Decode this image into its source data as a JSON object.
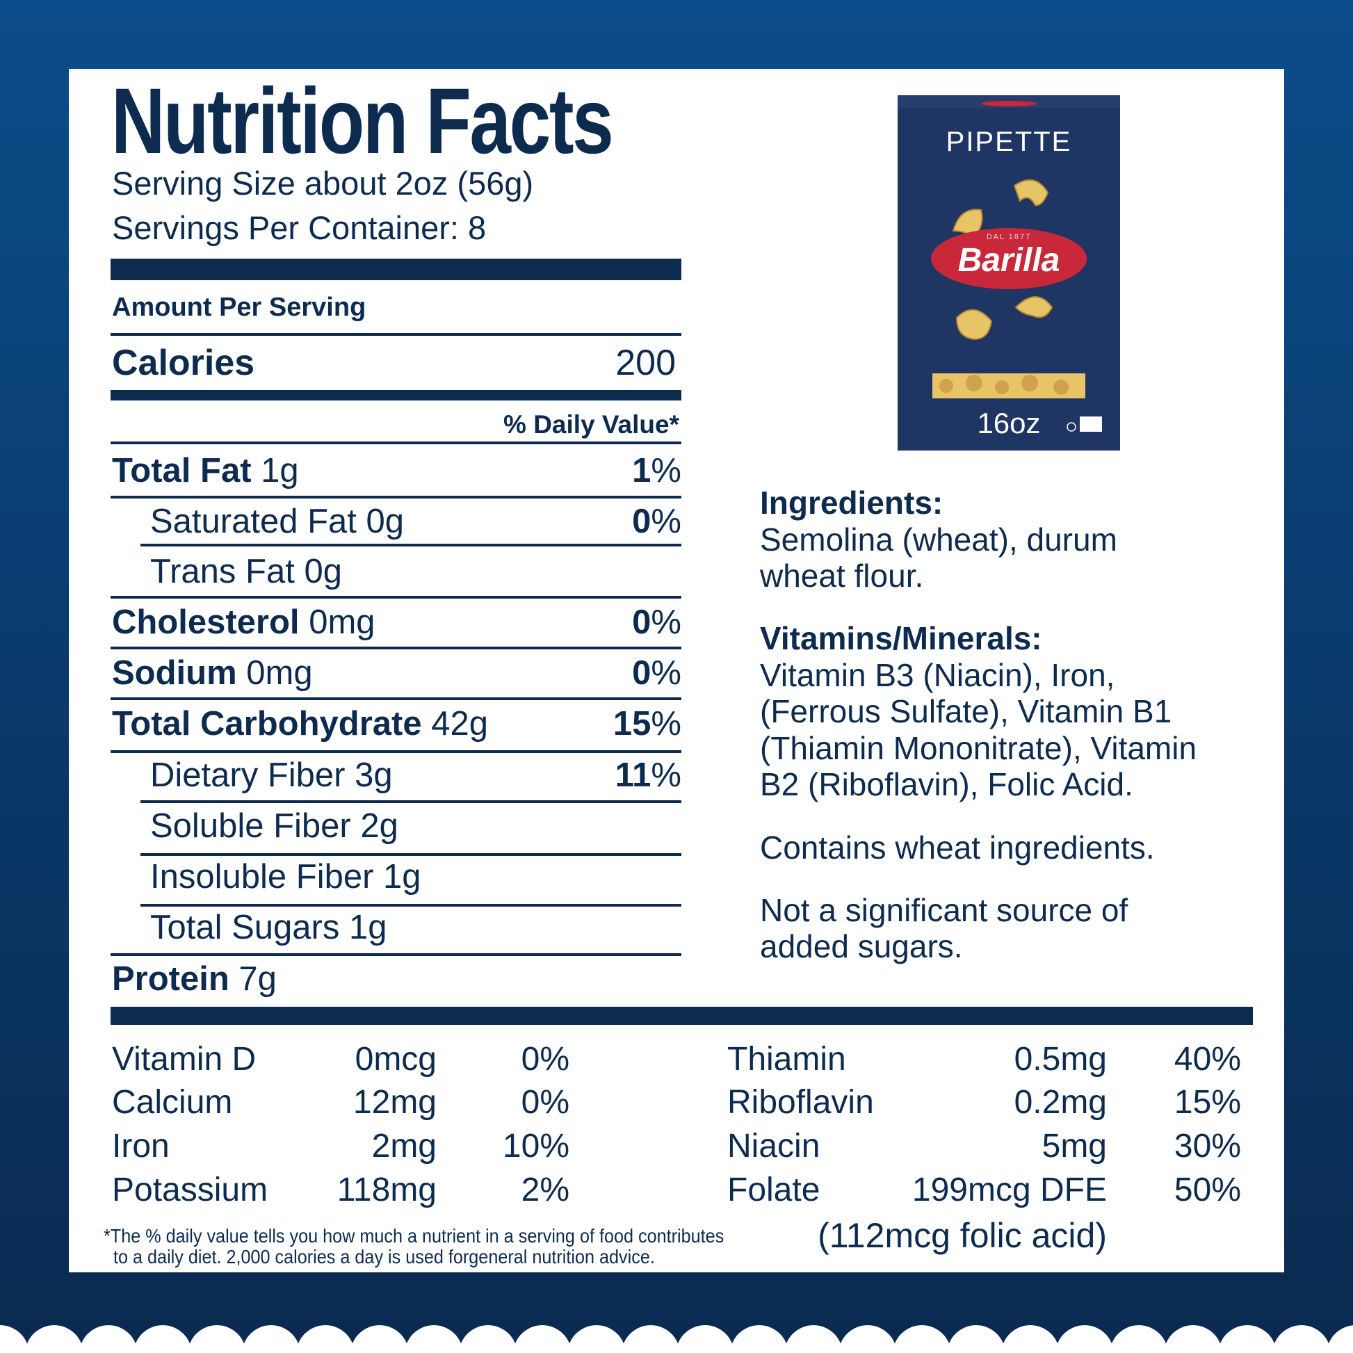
{
  "title": "Nutrition Facts",
  "serving_size": "Serving Size about 2oz (56g)",
  "servings_per_container": "Servings Per Container: 8",
  "amount_per_serving": "Amount Per Serving",
  "calories": {
    "label": "Calories",
    "value": "200"
  },
  "daily_value_header": "% Daily Value*",
  "nutrients": [
    {
      "label": "Total Fat",
      "amount": "1g",
      "pct_num": "1",
      "pct_sign": "%"
    },
    {
      "label": "Saturated Fat 0g",
      "amount": "",
      "pct_num": "0",
      "pct_sign": "%"
    },
    {
      "label": "Trans Fat 0g",
      "amount": "",
      "pct_num": "",
      "pct_sign": ""
    },
    {
      "label": "Cholesterol",
      "amount": "0mg",
      "pct_num": "0",
      "pct_sign": "%"
    },
    {
      "label": "Sodium",
      "amount": "0mg",
      "pct_num": "0",
      "pct_sign": "%"
    },
    {
      "label": "Total Carbohydrate",
      "amount": "42g",
      "pct_num": "15",
      "pct_sign": "%"
    },
    {
      "label": "Dietary Fiber 3g",
      "amount": "",
      "pct_num": "11",
      "pct_sign": "%"
    },
    {
      "label": "Soluble Fiber 2g",
      "amount": "",
      "pct_num": "",
      "pct_sign": ""
    },
    {
      "label": "Insoluble Fiber 1g",
      "amount": "",
      "pct_num": "",
      "pct_sign": ""
    },
    {
      "label": "Total Sugars 1g",
      "amount": "",
      "pct_num": "",
      "pct_sign": ""
    },
    {
      "label": "Protein",
      "amount": "7g",
      "pct_num": "",
      "pct_sign": ""
    }
  ],
  "vitamins_left": [
    {
      "name": "Vitamin D",
      "amount": "0mcg",
      "pct": "0%"
    },
    {
      "name": "Calcium",
      "amount": "12mg",
      "pct": "0%"
    },
    {
      "name": "Iron",
      "amount": "2mg",
      "pct": "10%"
    },
    {
      "name": "Potassium",
      "amount": "118mg",
      "pct": "2%"
    }
  ],
  "vitamins_right": [
    {
      "name": "Thiamin",
      "amount": "0.5mg",
      "pct": "40%"
    },
    {
      "name": "Riboflavin",
      "amount": "0.2mg",
      "pct": "15%"
    },
    {
      "name": "Niacin",
      "amount": "5mg",
      "pct": "30%"
    },
    {
      "name": "Folate",
      "amount": "199mcg DFE",
      "pct": "50%"
    }
  ],
  "folic_acid": "(112mcg folic acid)",
  "footnote": [
    "*The % daily value tells you how much a nutrient in a serving of food contributes",
    "to a daily diet. 2,000 calories a day is used forgeneral nutrition advice."
  ],
  "ingredients": {
    "heading": "Ingredients:",
    "lines": [
      "Semolina (wheat), durum",
      "wheat flour."
    ]
  },
  "vitamins_minerals": {
    "heading": "Vitamins/Minerals:",
    "lines": [
      "Vitamin B3 (Niacin), Iron,",
      "(Ferrous Sulfate), Vitamin B1",
      "(Thiamin Mononitrate), Vitamin",
      "B2 (Riboflavin), Folic Acid."
    ]
  },
  "allergen": "Contains wheat ingredients.",
  "sugars_note": [
    "Not a significant source of",
    "added sugars."
  ],
  "package": {
    "product": "PIPETTE",
    "brand": "Barilla",
    "since": "DAL 1877",
    "weight": "16oz",
    "colors": {
      "box": "#1f3563",
      "logo": "#c8283a",
      "pasta": "#e7c466"
    }
  },
  "colors": {
    "text": "#0d2b4f",
    "background_top": "#0b4d8a",
    "background_bottom": "#0a2a50"
  }
}
